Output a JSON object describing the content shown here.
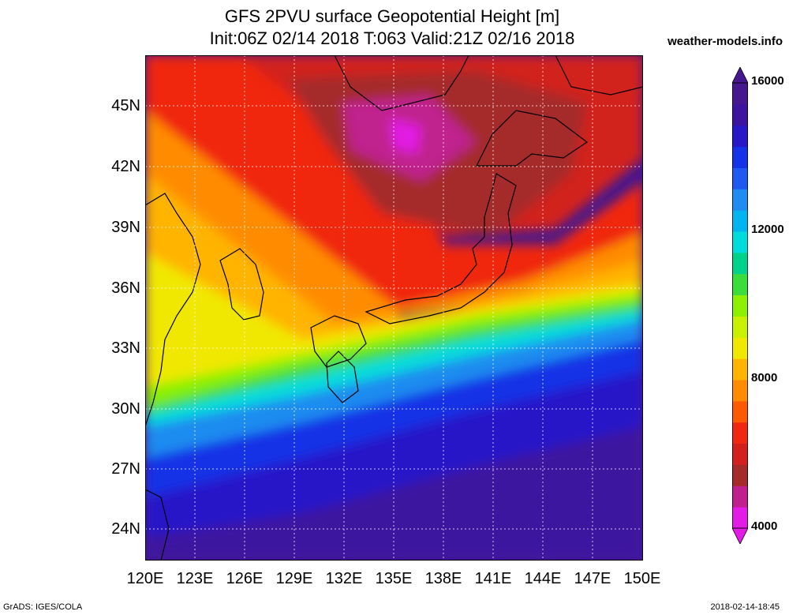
{
  "title_line1": "GFS 2PVU surface Geopotential Height [m]",
  "title_line2": "Init:06Z 02/14 2018 T:063 Valid:21Z 02/16 2018",
  "site": "weather-models.info",
  "footer_left": "GrADS: IGES/COLA",
  "footer_right": "2018-02-14-18:45",
  "lat_labels": [
    "45N",
    "42N",
    "39N",
    "36N",
    "33N",
    "30N",
    "27N",
    "24N"
  ],
  "lon_labels": [
    "120E",
    "123E",
    "126E",
    "129E",
    "132E",
    "135E",
    "138E",
    "141E",
    "144E",
    "147E",
    "150E"
  ],
  "colorbar": {
    "labels": [
      "16000",
      "12000",
      "8000",
      "4000"
    ],
    "colors": [
      "#e21ce4",
      "#c0208e",
      "#a52a2a",
      "#d2201c",
      "#f02810",
      "#ff5a00",
      "#ff8c00",
      "#ffb400",
      "#f0e800",
      "#c8f000",
      "#8cf000",
      "#3cdc3c",
      "#00d28c",
      "#00dcdc",
      "#00b4f0",
      "#1e8cf0",
      "#1e5af0",
      "#1432e6",
      "#2818c8",
      "#3c14a0",
      "#461890"
    ]
  }
}
